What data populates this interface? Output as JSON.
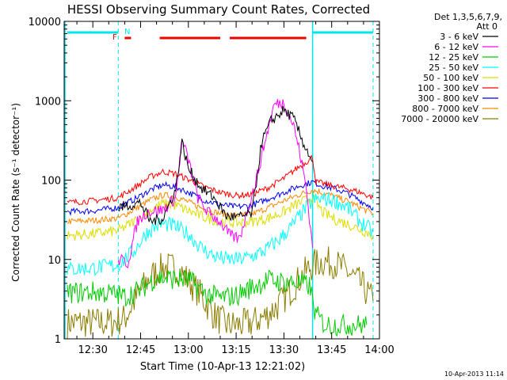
{
  "colors": {
    "background": "#ffffff",
    "axis": "#000000",
    "attenuator_bar": "#00e5ee",
    "flare_flag": "#ee0000",
    "night_marker": "#00e5ee"
  },
  "chart_data": {
    "type": "line",
    "title": "HESSI Observing Summary Count Rates, Corrected",
    "xlabel": "Start Time (10-Apr-13 12:21:02)",
    "ylabel": "Corrected Count Rate (s⁻¹ detector⁻¹)",
    "y_scale": "log",
    "ylim": [
      1,
      10000
    ],
    "xlim": [
      "12:21",
      "14:00"
    ],
    "grid": false,
    "legend_placement": "right",
    "legend_header": [
      "Det 1,3,5,6,7,9,",
      "Att 0"
    ],
    "footer": "10-Apr-2013 11:14",
    "x_tick_labels": [
      "12:30",
      "12:45",
      "13:00",
      "13:15",
      "13:30",
      "13:45",
      "14:00"
    ],
    "y_tick_labels": [
      "1",
      "10",
      "100",
      "1000",
      "10000"
    ],
    "annotations": [
      {
        "text": "F",
        "color": "#ee0000"
      },
      {
        "text": "N",
        "color": "#00e5ee"
      }
    ],
    "night_markers": [
      "12:38",
      "13:39",
      "13:58"
    ],
    "attenuator_intervals": [
      [
        "12:22",
        "12:38"
      ],
      [
        "13:39",
        "13:58"
      ]
    ],
    "flare_flag_intervals": [
      [
        "12:40",
        "12:42"
      ],
      [
        "12:51",
        "13:10"
      ],
      [
        "13:13",
        "13:37"
      ]
    ],
    "series": [
      {
        "name": "3 - 6 keV",
        "color": "#000000",
        "points": [
          [
            "12:38",
            45
          ],
          [
            "12:45",
            52
          ],
          [
            "12:48",
            30
          ],
          [
            "12:52",
            33
          ],
          [
            "12:56",
            75
          ],
          [
            "12:58",
            300
          ],
          [
            "13:00",
            140
          ],
          [
            "13:04",
            80
          ],
          [
            "13:08",
            60
          ],
          [
            "13:12",
            35
          ],
          [
            "13:16",
            34
          ],
          [
            "13:20",
            38
          ],
          [
            "13:23",
            300
          ],
          [
            "13:26",
            560
          ],
          [
            "13:30",
            760
          ],
          [
            "13:33",
            600
          ],
          [
            "13:36",
            300
          ],
          [
            "13:39",
            170
          ]
        ]
      },
      {
        "name": "6 - 12 keV",
        "color": "#ff00ff",
        "points": [
          [
            "12:38",
            10
          ],
          [
            "12:41",
            9
          ],
          [
            "12:44",
            30
          ],
          [
            "12:47",
            40
          ],
          [
            "12:52",
            42
          ],
          [
            "12:56",
            60
          ],
          [
            "12:58",
            320
          ],
          [
            "13:00",
            180
          ],
          [
            "13:03",
            60
          ],
          [
            "13:06",
            40
          ],
          [
            "13:10",
            30
          ],
          [
            "13:13",
            20
          ],
          [
            "13:16",
            18
          ],
          [
            "13:18",
            35
          ],
          [
            "13:21",
            90
          ],
          [
            "13:24",
            300
          ],
          [
            "13:27",
            900
          ],
          [
            "13:30",
            950
          ],
          [
            "13:33",
            500
          ],
          [
            "13:35",
            220
          ],
          [
            "13:37",
            80
          ],
          [
            "13:39",
            14
          ]
        ]
      },
      {
        "name": "12 - 25 keV",
        "color": "#00cc00",
        "points": [
          [
            "12:22",
            3.8
          ],
          [
            "12:30",
            3.9
          ],
          [
            "12:36",
            3.7
          ],
          [
            "12:40",
            3.4
          ],
          [
            "12:45",
            4.2
          ],
          [
            "12:50",
            6.0
          ],
          [
            "12:55",
            5.7
          ],
          [
            "13:00",
            5.5
          ],
          [
            "13:03",
            4.5
          ],
          [
            "13:06",
            3.6
          ],
          [
            "13:10",
            3.3
          ],
          [
            "13:15",
            3.5
          ],
          [
            "13:20",
            4.5
          ],
          [
            "13:25",
            5.5
          ],
          [
            "13:30",
            5.2
          ],
          [
            "13:35",
            5.0
          ],
          [
            "13:38",
            4.7
          ],
          [
            "13:40",
            2.0
          ],
          [
            "13:43",
            1.5
          ],
          [
            "13:47",
            1.5
          ],
          [
            "13:52",
            1.5
          ],
          [
            "13:56",
            1.5
          ]
        ]
      },
      {
        "name": "25 - 50 keV",
        "color": "#00ffff",
        "points": [
          [
            "12:22",
            7.5
          ],
          [
            "12:30",
            7.8
          ],
          [
            "12:38",
            8.5
          ],
          [
            "12:43",
            13
          ],
          [
            "12:47",
            22
          ],
          [
            "12:51",
            28
          ],
          [
            "12:55",
            27
          ],
          [
            "13:00",
            21
          ],
          [
            "13:04",
            14
          ],
          [
            "13:08",
            11
          ],
          [
            "13:12",
            10
          ],
          [
            "13:16",
            10
          ],
          [
            "13:20",
            11
          ],
          [
            "13:24",
            13
          ],
          [
            "13:28",
            17
          ],
          [
            "13:32",
            25
          ],
          [
            "13:36",
            40
          ],
          [
            "13:39",
            55
          ],
          [
            "13:42",
            58
          ],
          [
            "13:46",
            55
          ],
          [
            "13:50",
            45
          ],
          [
            "13:54",
            30
          ],
          [
            "13:58",
            22
          ]
        ]
      },
      {
        "name": "50 - 100 keV",
        "color": "#dddd00",
        "points": [
          [
            "12:22",
            20
          ],
          [
            "12:30",
            21
          ],
          [
            "12:38",
            23
          ],
          [
            "12:44",
            32
          ],
          [
            "12:48",
            42
          ],
          [
            "12:52",
            50
          ],
          [
            "12:56",
            48
          ],
          [
            "13:00",
            41
          ],
          [
            "13:05",
            34
          ],
          [
            "13:10",
            30
          ],
          [
            "13:15",
            29
          ],
          [
            "13:20",
            30
          ],
          [
            "13:25",
            33
          ],
          [
            "13:30",
            40
          ],
          [
            "13:35",
            52
          ],
          [
            "13:39",
            60
          ],
          [
            "13:42",
            40
          ],
          [
            "13:46",
            32
          ],
          [
            "13:50",
            28
          ],
          [
            "13:54",
            24
          ],
          [
            "13:58",
            20
          ]
        ]
      },
      {
        "name": "100 - 300 keV",
        "color": "#ff0000",
        "points": [
          [
            "12:22",
            52
          ],
          [
            "12:30",
            55
          ],
          [
            "12:38",
            60
          ],
          [
            "12:44",
            85
          ],
          [
            "12:48",
            110
          ],
          [
            "12:52",
            128
          ],
          [
            "12:56",
            120
          ],
          [
            "13:00",
            102
          ],
          [
            "13:05",
            82
          ],
          [
            "13:10",
            70
          ],
          [
            "13:15",
            64
          ],
          [
            "13:20",
            66
          ],
          [
            "13:25",
            80
          ],
          [
            "13:30",
            105
          ],
          [
            "13:34",
            140
          ],
          [
            "13:37",
            170
          ],
          [
            "13:39",
            195
          ],
          [
            "13:40",
            95
          ],
          [
            "13:45",
            85
          ],
          [
            "13:50",
            78
          ],
          [
            "13:54",
            70
          ],
          [
            "13:58",
            60
          ]
        ]
      },
      {
        "name": "300 - 800 keV",
        "color": "#0000ee",
        "points": [
          [
            "12:22",
            40
          ],
          [
            "12:30",
            41
          ],
          [
            "12:38",
            45
          ],
          [
            "12:44",
            60
          ],
          [
            "12:48",
            75
          ],
          [
            "12:52",
            87
          ],
          [
            "12:56",
            82
          ],
          [
            "13:00",
            70
          ],
          [
            "13:05",
            56
          ],
          [
            "13:10",
            49
          ],
          [
            "13:15",
            46
          ],
          [
            "13:20",
            48
          ],
          [
            "13:25",
            58
          ],
          [
            "13:30",
            70
          ],
          [
            "13:35",
            85
          ],
          [
            "13:39",
            95
          ],
          [
            "13:42",
            85
          ],
          [
            "13:46",
            78
          ],
          [
            "13:50",
            68
          ],
          [
            "13:54",
            55
          ],
          [
            "13:58",
            45
          ]
        ]
      },
      {
        "name": "800 - 7000 keV",
        "color": "#ff8800",
        "points": [
          [
            "12:22",
            30
          ],
          [
            "12:30",
            31
          ],
          [
            "12:38",
            33
          ],
          [
            "12:44",
            45
          ],
          [
            "12:48",
            56
          ],
          [
            "12:52",
            65
          ],
          [
            "12:56",
            62
          ],
          [
            "13:00",
            53
          ],
          [
            "13:05",
            43
          ],
          [
            "13:10",
            38
          ],
          [
            "13:15",
            36
          ],
          [
            "13:20",
            37
          ],
          [
            "13:25",
            45
          ],
          [
            "13:30",
            55
          ],
          [
            "13:35",
            66
          ],
          [
            "13:39",
            75
          ],
          [
            "13:42",
            70
          ],
          [
            "13:46",
            62
          ],
          [
            "13:50",
            54
          ],
          [
            "13:54",
            45
          ],
          [
            "13:58",
            38
          ]
        ]
      },
      {
        "name": "7000 - 20000 keV",
        "color": "#8b7d00",
        "points": [
          [
            "12:22",
            1.6
          ],
          [
            "12:30",
            1.6
          ],
          [
            "12:36",
            1.6
          ],
          [
            "12:40",
            1.8
          ],
          [
            "12:44",
            3.5
          ],
          [
            "12:48",
            6.0
          ],
          [
            "12:52",
            8.0
          ],
          [
            "12:56",
            7.8
          ],
          [
            "13:00",
            5.5
          ],
          [
            "13:04",
            3.5
          ],
          [
            "13:08",
            2.0
          ],
          [
            "13:12",
            1.5
          ],
          [
            "13:16",
            1.5
          ],
          [
            "13:20",
            1.6
          ],
          [
            "13:24",
            1.9
          ],
          [
            "13:28",
            2.6
          ],
          [
            "13:32",
            4.0
          ],
          [
            "13:36",
            6.5
          ],
          [
            "13:39",
            8.5
          ],
          [
            "13:42",
            9.5
          ],
          [
            "13:46",
            9.0
          ],
          [
            "13:50",
            7.0
          ],
          [
            "13:54",
            5.0
          ],
          [
            "13:58",
            3.0
          ]
        ]
      }
    ]
  }
}
